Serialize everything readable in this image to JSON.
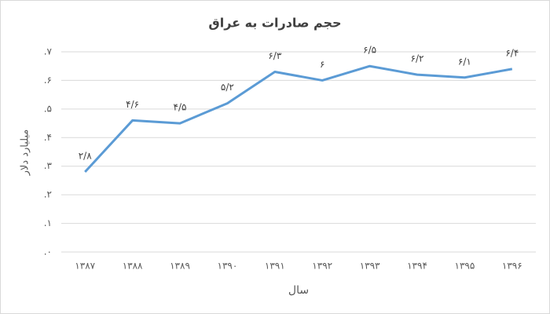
{
  "chart_data": {
    "type": "line",
    "title": "حجم صادرات به عراق",
    "x_label": "سال",
    "y_label": "میلیارد دلار",
    "categories": [
      "۱۳۸۷",
      "۱۳۸۸",
      "۱۳۸۹",
      "۱۳۹۰",
      "۱۳۹۱",
      "۱۳۹۲",
      "۱۳۹۳",
      "۱۳۹۴",
      "۱۳۹۵",
      "۱۳۹۶"
    ],
    "series": [
      {
        "color": "#5b9bd5",
        "values": [
          2.8,
          4.6,
          4.5,
          5.2,
          6.3,
          6,
          6.5,
          6.2,
          6.1,
          6.4
        ],
        "value_labels": [
          "۲/۸",
          "۴/۶",
          "۴/۵",
          "۵/۲",
          "۶/۳",
          "۶",
          "۶/۵",
          "۶/۲",
          "۶/۱",
          "۶/۴"
        ]
      }
    ],
    "ylim": [
      0,
      7
    ],
    "yticks": [
      {
        "value": 0,
        "label": ".۰"
      },
      {
        "value": 1,
        "label": ".۱"
      },
      {
        "value": 2,
        "label": ".۲"
      },
      {
        "value": 3,
        "label": ".۳"
      },
      {
        "value": 4,
        "label": ".۴"
      },
      {
        "value": 5,
        "label": ".۵"
      },
      {
        "value": 6,
        "label": ".۶"
      },
      {
        "value": 7,
        "label": ".۷"
      }
    ],
    "grid": true
  }
}
